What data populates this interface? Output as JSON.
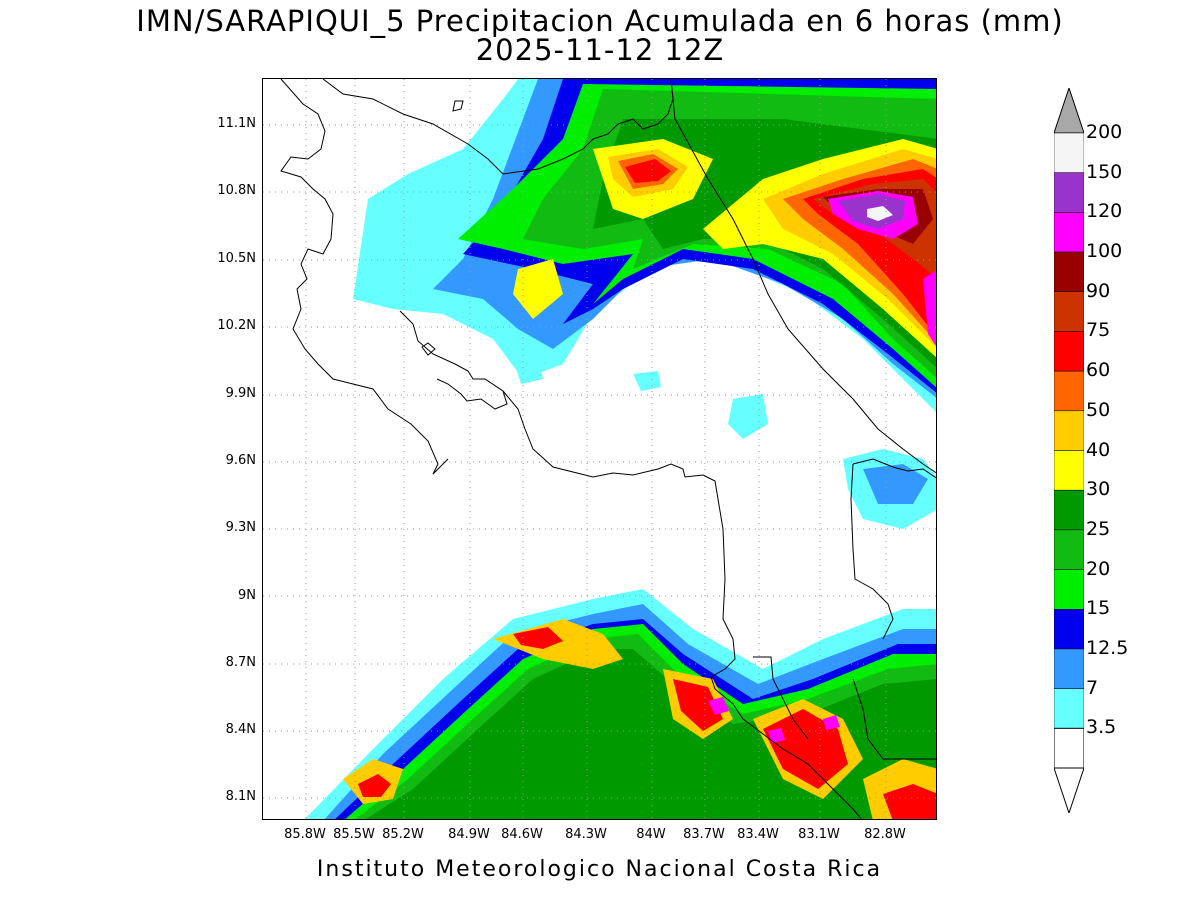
{
  "header": {
    "title_line1": "IMN/SARAPIQUI_5 Precipitacion Acumulada en 6 horas (mm)",
    "title_line2": "2025-11-12 12Z"
  },
  "map": {
    "lat_labels": [
      "11.1N",
      "10.8N",
      "10.5N",
      "10.2N",
      "9.9N",
      "9.6N",
      "9.3N",
      "9N",
      "8.7N",
      "8.4N",
      "8.1N"
    ],
    "lon_labels": [
      "85.8W",
      "85.5W",
      "85.2W",
      "84.9W",
      "84.6W",
      "84.3W",
      "84W",
      "83.7W",
      "83.4W",
      "83.1W",
      "82.8W"
    ],
    "grid": true,
    "grid_color": "#999999",
    "coastline_color": "#000000"
  },
  "colorbar": {
    "levels": [
      "3.5",
      "7",
      "12.5",
      "15",
      "20",
      "25",
      "30",
      "40",
      "50",
      "60",
      "75",
      "90",
      "100",
      "120",
      "150",
      "200"
    ],
    "colors": [
      "#66ffff",
      "#3399ff",
      "#0000ee",
      "#00ee00",
      "#11bb11",
      "#009900",
      "#ffff00",
      "#ffcc00",
      "#ff6600",
      "#ff0000",
      "#cc3300",
      "#990000",
      "#ff00ff",
      "#9933cc",
      "#f5f5f5",
      "#a8a8a8"
    ],
    "under_color": "#ffffff",
    "over_color": "#a8a8a8"
  },
  "footer": {
    "text": "Instituto Meteorologico Nacional Costa Rica"
  }
}
